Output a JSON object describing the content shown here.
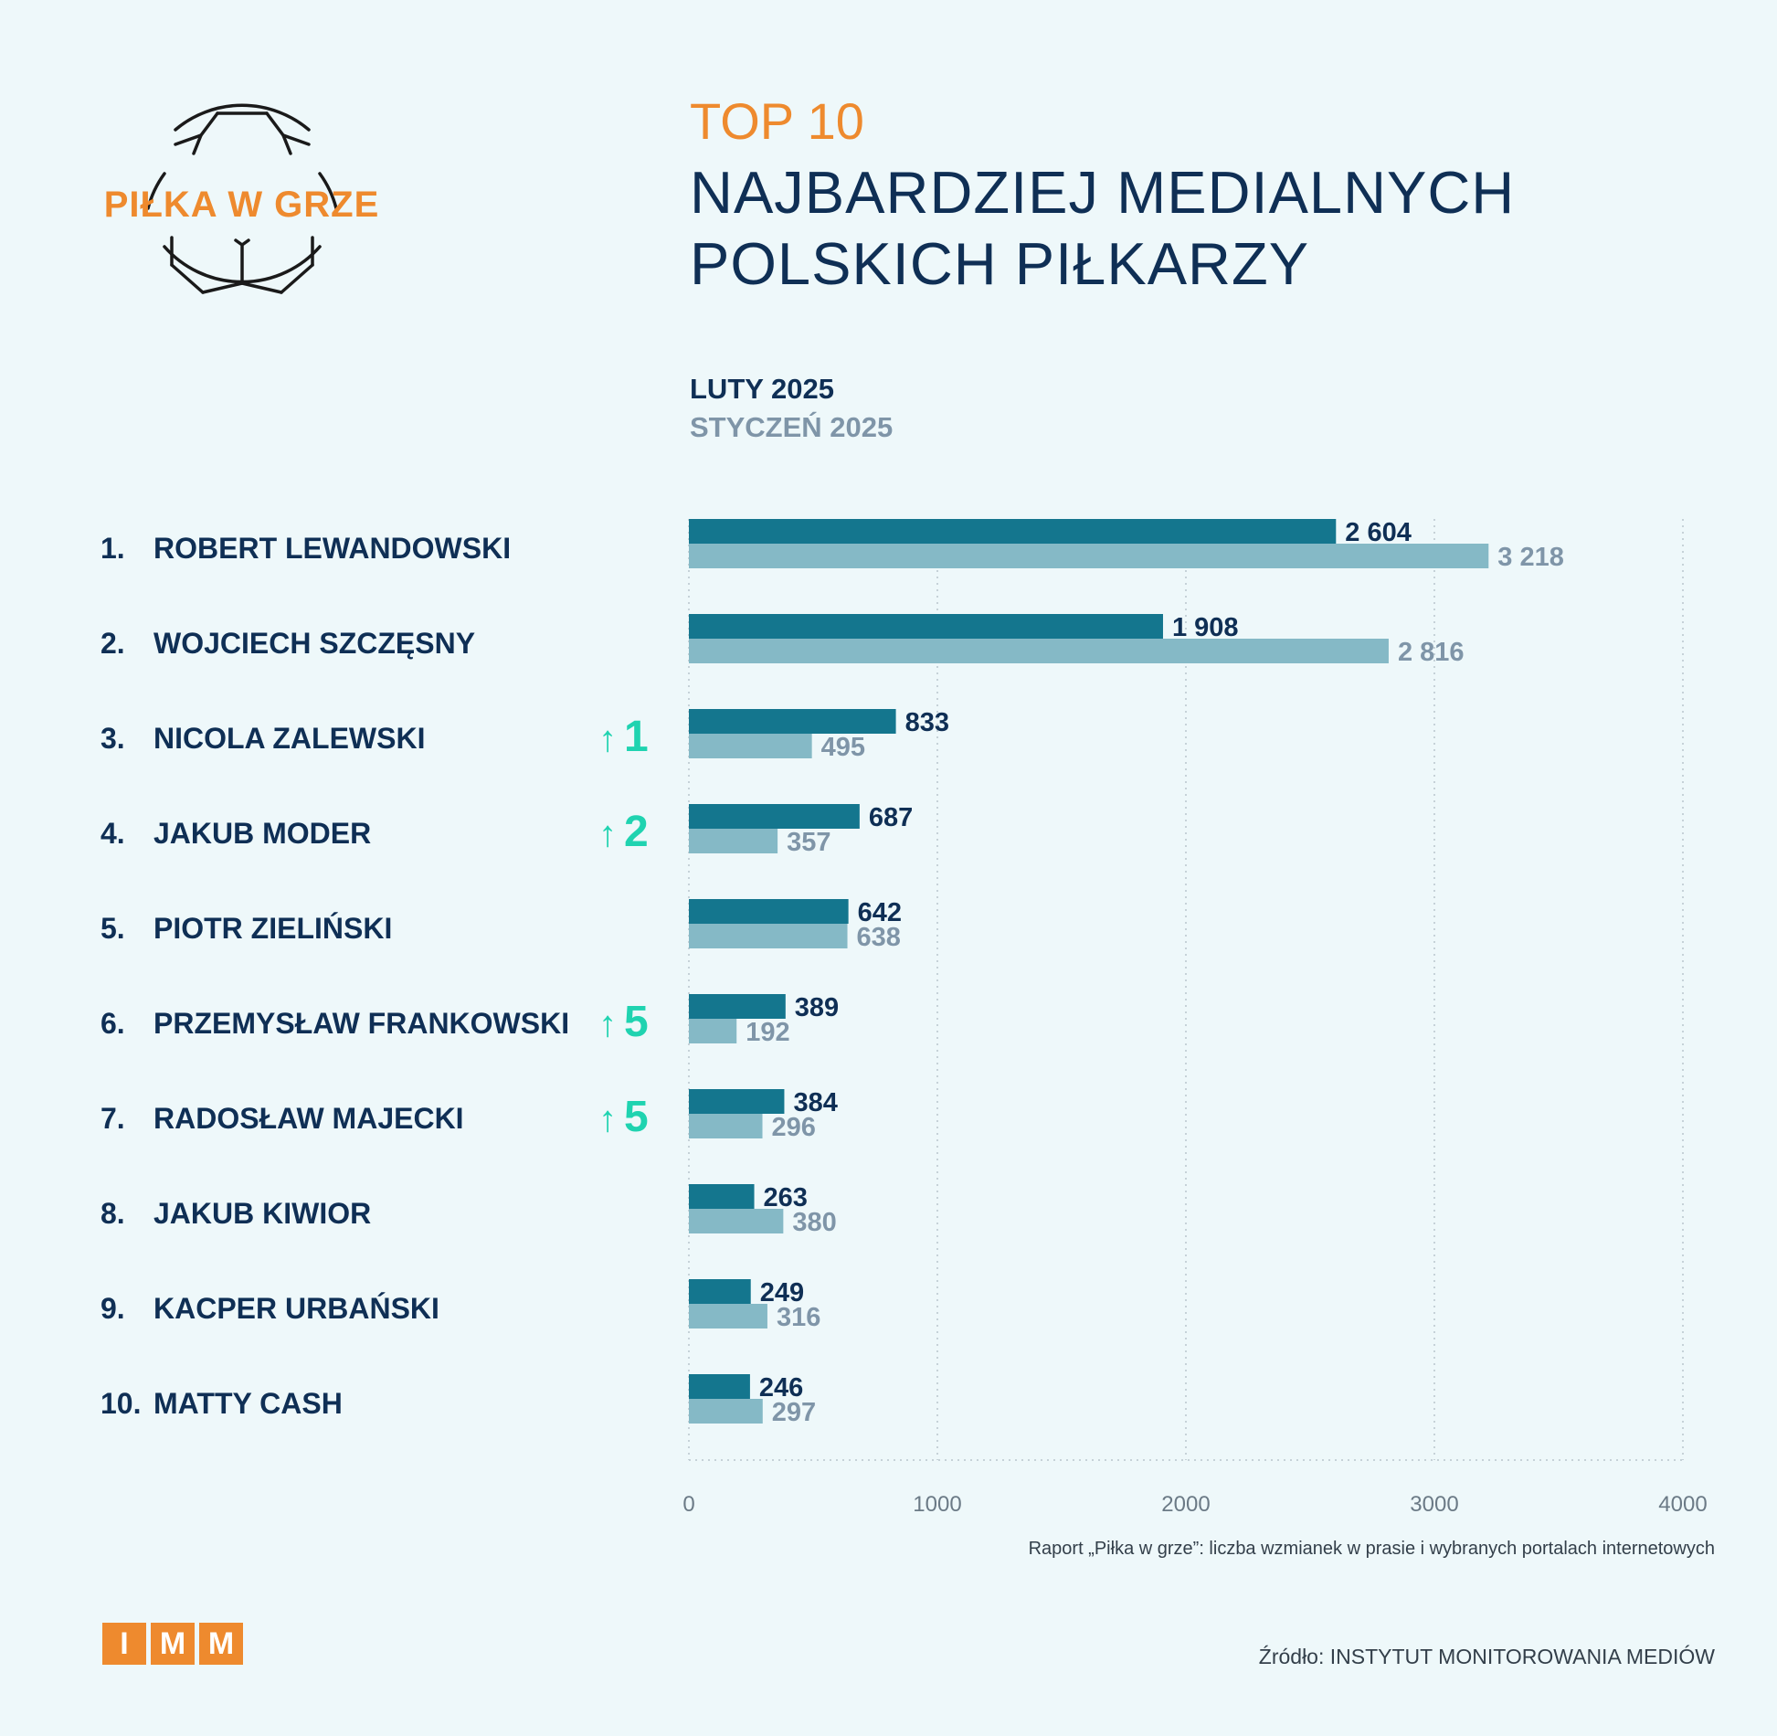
{
  "logo": {
    "text": "PIŁKA W GRZE"
  },
  "title": {
    "top": "TOP 10",
    "line1": "NAJBARDZIEJ MEDIALNYCH",
    "line2": "POLSKICH PIŁKARZY"
  },
  "legend": {
    "current": "LUTY 2025",
    "previous": "STYCZEŃ 2025"
  },
  "colors": {
    "current": "#14768e",
    "previous": "#85b9c6",
    "up": "#1fd3b0",
    "accent": "#ee8a2e",
    "navy": "#0f2f55"
  },
  "players": [
    {
      "rank": "1.",
      "name": "ROBERT LEWANDOWSKI",
      "up": ""
    },
    {
      "rank": "2.",
      "name": "WOJCIECH SZCZĘSNY",
      "up": ""
    },
    {
      "rank": "3.",
      "name": "NICOLA ZALEWSKI",
      "up": "1"
    },
    {
      "rank": "4.",
      "name": "JAKUB MODER",
      "up": "2"
    },
    {
      "rank": "5.",
      "name": "PIOTR ZIELIŃSKI",
      "up": ""
    },
    {
      "rank": "6.",
      "name": "PRZEMYSŁAW FRANKOWSKI",
      "up": "5"
    },
    {
      "rank": "7.",
      "name": "RADOSŁAW MAJECKI",
      "up": "5"
    },
    {
      "rank": "8.",
      "name": "JAKUB KIWIOR",
      "up": ""
    },
    {
      "rank": "9.",
      "name": "KACPER URBAŃSKI",
      "up": ""
    },
    {
      "rank": "10.",
      "name": "MATTY CASH",
      "up": ""
    }
  ],
  "chart_data": {
    "type": "bar",
    "orientation": "horizontal",
    "categories": [
      "ROBERT LEWANDOWSKI",
      "WOJCIECH SZCZĘSNY",
      "NICOLA ZALEWSKI",
      "JAKUB MODER",
      "PIOTR ZIELIŃSKI",
      "PRZEMYSŁAW FRANKOWSKI",
      "RADOSŁAW MAJECKI",
      "JAKUB KIWIOR",
      "KACPER URBAŃSKI",
      "MATTY CASH"
    ],
    "series": [
      {
        "name": "LUTY 2025",
        "values": [
          2604,
          1908,
          833,
          687,
          642,
          389,
          384,
          263,
          249,
          246
        ],
        "labels": [
          "2 604",
          "1 908",
          "833",
          "687",
          "642",
          "389",
          "384",
          "263",
          "249",
          "246"
        ]
      },
      {
        "name": "STYCZEŃ 2025",
        "values": [
          3218,
          2816,
          495,
          357,
          638,
          192,
          296,
          380,
          316,
          297
        ],
        "labels": [
          "3 218",
          "2 816",
          "495",
          "357",
          "638",
          "192",
          "296",
          "380",
          "316",
          "297"
        ]
      }
    ],
    "xlim": [
      0,
      4000
    ],
    "xticks": [
      "0",
      "1000",
      "2000",
      "3000",
      "4000"
    ],
    "grid": true
  },
  "footer": {
    "note": "Raport „Piłka w grze”: liczba wzmianek w prasie i wybranych portalach internetowych",
    "source": "Źródło: INSTYTUT MONITOROWANIA MEDIÓW",
    "brand_letters": [
      "I",
      "M",
      "M"
    ]
  }
}
